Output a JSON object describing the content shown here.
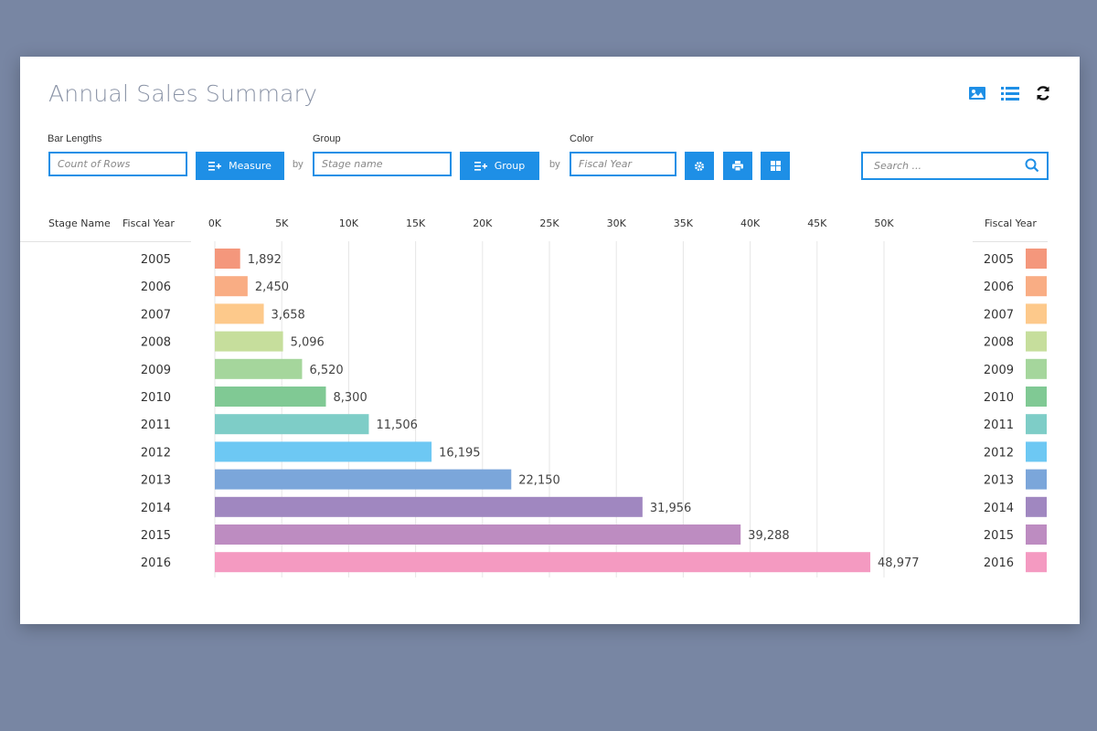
{
  "title": "Annual Sales Summary",
  "colors": {
    "accent": "#1e8fe6"
  },
  "top_icons": [
    "image-icon",
    "list-icon",
    "refresh-icon"
  ],
  "controls": {
    "bar_lengths_label": "Bar Lengths",
    "bar_lengths_placeholder": "Count of Rows",
    "measure_button": "Measure",
    "by1": "by",
    "group_label": "Group",
    "group_placeholder": "Stage name",
    "group_button": "Group",
    "by2": "by",
    "color_label": "Color",
    "color_placeholder": "Fiscal Year",
    "search_placeholder": "Search ..."
  },
  "columns": {
    "stage_name": "Stage Name",
    "fiscal_year": "Fiscal Year",
    "legend_header": "Fiscal Year"
  },
  "chart_data": {
    "type": "bar",
    "orientation": "horizontal",
    "x_ticks": [
      "0K",
      "5K",
      "10K",
      "15K",
      "20K",
      "25K",
      "30K",
      "35K",
      "40K",
      "45K",
      "50K"
    ],
    "xlim": [
      0,
      50000
    ],
    "categories": [
      "2005",
      "2006",
      "2007",
      "2008",
      "2009",
      "2010",
      "2011",
      "2012",
      "2013",
      "2014",
      "2015",
      "2016"
    ],
    "values": [
      1892,
      2450,
      3658,
      5096,
      6520,
      8300,
      11506,
      16195,
      22150,
      31956,
      39288,
      48977
    ],
    "value_labels": [
      "1,892",
      "2,450",
      "3,658",
      "5,096",
      "6,520",
      "8,300",
      "11,506",
      "16,195",
      "22,150",
      "31,956",
      "39,288",
      "48,977"
    ],
    "colors": [
      "#f4977c",
      "#f9ad84",
      "#fdc98b",
      "#c6de9c",
      "#a5d69c",
      "#80c994",
      "#7ecdc7",
      "#6dc8f3",
      "#7ba6da",
      "#a087c0",
      "#bd8cc1",
      "#f49ac1"
    ],
    "grid": true,
    "legend": "right"
  }
}
